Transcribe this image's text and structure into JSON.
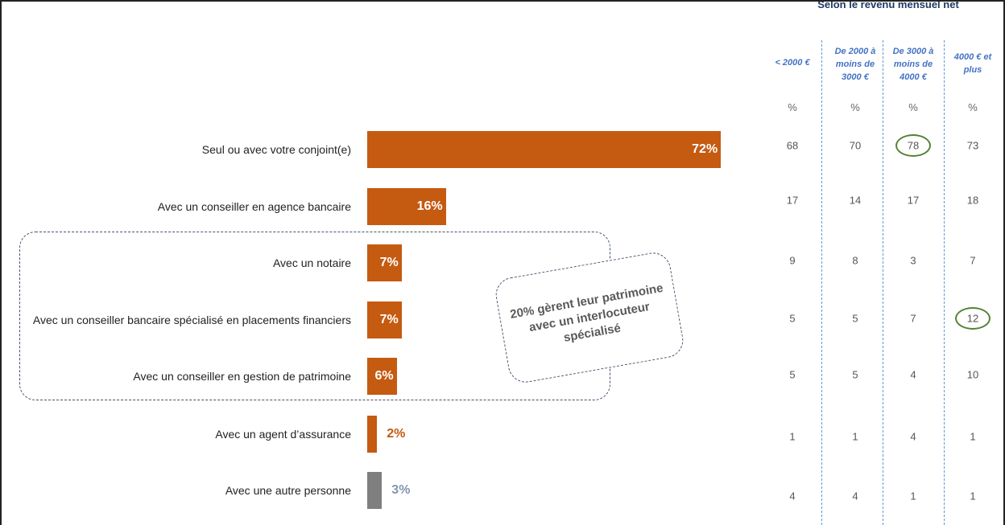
{
  "chart_data": {
    "type": "bar",
    "orientation": "horizontal",
    "categories": [
      "Seul ou avec votre conjoint(e)",
      "Avec un conseiller en agence bancaire",
      "Avec un notaire",
      "Avec un conseiller bancaire spécialisé en placements financiers",
      "Avec un conseiller en gestion de patrimoine",
      "Avec un agent d’assurance",
      "Avec une autre personne"
    ],
    "values": [
      72,
      16,
      7,
      7,
      6,
      2,
      3
    ],
    "value_labels": [
      "72%",
      "16%",
      "7%",
      "7%",
      "6%",
      "2%",
      "3%"
    ],
    "colors": [
      "#c55a11",
      "#c55a11",
      "#c55a11",
      "#c55a11",
      "#c55a11",
      "#c55a11",
      "#7f7f7f"
    ],
    "label_colors": [
      "#ffffff",
      "#ffffff",
      "#ffffff",
      "#ffffff",
      "#ffffff",
      "#c55a11",
      "#8497b0"
    ],
    "xlim": [
      0,
      100
    ]
  },
  "callout_text": "20% gèrent leur patrimoine avec un interlocuteur spécialisé",
  "breakdown": {
    "title": "Selon le revenu mensuel net",
    "columns": [
      "< 2000 €",
      "De 2000 à moins de 3000 €",
      "De 3000 à moins de 4000 €",
      "4000 € et plus"
    ],
    "unit": "%",
    "rows": [
      [
        "68",
        "70",
        "78",
        "73"
      ],
      [
        "17",
        "14",
        "17",
        "18"
      ],
      [
        "9",
        "8",
        "3",
        "7"
      ],
      [
        "5",
        "5",
        "7",
        "12"
      ],
      [
        "5",
        "5",
        "4",
        "10"
      ],
      [
        "1",
        "1",
        "4",
        "1"
      ],
      [
        "4",
        "4",
        "1",
        "1"
      ]
    ],
    "highlighted_cells": [
      [
        0,
        2
      ],
      [
        3,
        3
      ]
    ],
    "highlight_color": "#548235"
  }
}
